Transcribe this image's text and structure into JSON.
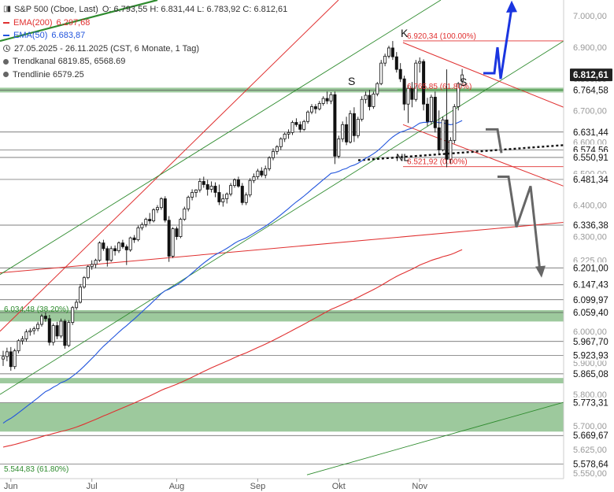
{
  "legend": {
    "symbol": "S&P 500 (Cboe, Last)",
    "ohlc": "O: 6.793,55   H: 6.831,44   L: 6.783,92   C: 6.812,61",
    "ema200_label": "EMA(200)",
    "ema200_value": "6.297,68",
    "ema50_label": "EMA(50)",
    "ema50_value": "6.683,87",
    "date_range": "27.05.2025 - 26.11.2025   (CST, 6 Monate, 1 Tag)",
    "trendkanal": "Trendkanal  6819.85, 6568.69",
    "trendlinie": "Trendlinie  6579.25",
    "colors": {
      "ema200": "#e03030",
      "ema50": "#2255dd"
    }
  },
  "annotations": {
    "fib_100": "6.920,34 (100.00%)",
    "fib_618_top": "6.765,85 (61.80%)",
    "fib_0": "6.521,92 (0.00%)",
    "fib_382_left": "6.034,48 (38.20%)",
    "fib_618_bottom": "5.544,83 (61.80%)",
    "hs_left_shoulder": "S",
    "hs_head": "K",
    "hs_right_shoulder": "S",
    "hs_neckline": "NL"
  },
  "chart_data": {
    "type": "candlestick",
    "y_axis": {
      "min": 5533,
      "max": 7050,
      "ticks": [
        "7.000,00",
        "6.900,00",
        "6.800,00",
        "6.700,00",
        "6.600,00",
        "6.500,00",
        "6.400,00",
        "6.300,00",
        "6.225,00",
        "6.100,00",
        "6.000,00",
        "5.900,00",
        "5.800,00",
        "5.700,00",
        "5.625,00",
        "5.550,00"
      ],
      "tick_values": [
        7000,
        6900,
        6800,
        6700,
        6600,
        6500,
        6400,
        6300,
        6225,
        6100,
        6000,
        5900,
        5800,
        5700,
        5625,
        5550
      ]
    },
    "x_axis": {
      "labels": [
        "Jun",
        "Jul",
        "Aug",
        "Sep",
        "Okt",
        "Nov"
      ],
      "label_index": [
        2,
        23,
        45,
        66,
        87,
        108
      ]
    },
    "last_price": {
      "label": "6.812,61",
      "value": 6812.61,
      "color": "#222222"
    },
    "levels": [
      {
        "label": "6.764,58",
        "value": 6764.58,
        "zone": true
      },
      {
        "label": "6.631,44",
        "value": 6631.44
      },
      {
        "label": "6.574,56",
        "value": 6574.56
      },
      {
        "label": "6.550,91",
        "value": 6550.91
      },
      {
        "label": "6.481,34",
        "value": 6481.34
      },
      {
        "label": "6.336,38",
        "value": 6336.38
      },
      {
        "label": "6.201,00",
        "value": 6201.0
      },
      {
        "label": "6.147,43",
        "value": 6147.43
      },
      {
        "label": "6.099,97",
        "value": 6099.97
      },
      {
        "label": "6.059,40",
        "value": 6059.4,
        "zone": true
      },
      {
        "label": "5.967,70",
        "value": 5967.7
      },
      {
        "label": "5.923,93",
        "value": 5923.93
      },
      {
        "label": "5.865,08",
        "value": 5865.08,
        "zone": true
      },
      {
        "label": "5.773,31",
        "value": 5773.31,
        "zone": true
      },
      {
        "label": "5.669,67",
        "value": 5669.67
      },
      {
        "label": "5.578,64",
        "value": 5578.64
      }
    ],
    "zones": [
      {
        "from": 6757,
        "to": 6772,
        "color": "#8cc08c"
      },
      {
        "from": 6031,
        "to": 6067,
        "color": "#8cc08c"
      },
      {
        "from": 5835,
        "to": 5852,
        "color": "#8cc08c"
      },
      {
        "from": 5682,
        "to": 5773,
        "color": "#8cc08c"
      }
    ],
    "fib_lines": [
      {
        "value": 6920.34,
        "color": "#e03030"
      },
      {
        "value": 6521.92,
        "color": "#e03030"
      }
    ],
    "candles": [
      {
        "o": 5912,
        "h": 5938,
        "l": 5890,
        "c": 5920
      },
      {
        "o": 5920,
        "h": 5948,
        "l": 5905,
        "c": 5935
      },
      {
        "o": 5935,
        "h": 5950,
        "l": 5875,
        "c": 5888
      },
      {
        "o": 5888,
        "h": 5945,
        "l": 5880,
        "c": 5938
      },
      {
        "o": 5938,
        "h": 5975,
        "l": 5930,
        "c": 5970
      },
      {
        "o": 5970,
        "h": 5985,
        "l": 5958,
        "c": 5976
      },
      {
        "o": 5976,
        "h": 6006,
        "l": 5968,
        "c": 5998
      },
      {
        "o": 5998,
        "h": 6010,
        "l": 5986,
        "c": 6002
      },
      {
        "o": 6002,
        "h": 6015,
        "l": 5990,
        "c": 6008
      },
      {
        "o": 6008,
        "h": 6030,
        "l": 6000,
        "c": 6022
      },
      {
        "o": 6022,
        "h": 6055,
        "l": 6015,
        "c": 6048
      },
      {
        "o": 6048,
        "h": 6060,
        "l": 6030,
        "c": 6040
      },
      {
        "o": 6040,
        "h": 6052,
        "l": 5955,
        "c": 5965
      },
      {
        "o": 5965,
        "h": 6025,
        "l": 5955,
        "c": 6018
      },
      {
        "o": 6018,
        "h": 6030,
        "l": 5975,
        "c": 5985
      },
      {
        "o": 5985,
        "h": 6040,
        "l": 5978,
        "c": 6032
      },
      {
        "o": 6032,
        "h": 6038,
        "l": 5945,
        "c": 5955
      },
      {
        "o": 5955,
        "h": 6035,
        "l": 5950,
        "c": 6028
      },
      {
        "o": 6028,
        "h": 6080,
        "l": 6020,
        "c": 6075
      },
      {
        "o": 6075,
        "h": 6100,
        "l": 6068,
        "c": 6092
      },
      {
        "o": 6092,
        "h": 6150,
        "l": 6088,
        "c": 6140
      },
      {
        "o": 6140,
        "h": 6175,
        "l": 6135,
        "c": 6170
      },
      {
        "o": 6170,
        "h": 6210,
        "l": 6165,
        "c": 6205
      },
      {
        "o": 6205,
        "h": 6225,
        "l": 6195,
        "c": 6212
      },
      {
        "o": 6212,
        "h": 6230,
        "l": 6200,
        "c": 6225
      },
      {
        "o": 6225,
        "h": 6285,
        "l": 6220,
        "c": 6280
      },
      {
        "o": 6280,
        "h": 6290,
        "l": 6255,
        "c": 6262
      },
      {
        "o": 6262,
        "h": 6270,
        "l": 6205,
        "c": 6225
      },
      {
        "o": 6225,
        "h": 6270,
        "l": 6220,
        "c": 6262
      },
      {
        "o": 6262,
        "h": 6272,
        "l": 6240,
        "c": 6255
      },
      {
        "o": 6255,
        "h": 6285,
        "l": 6248,
        "c": 6280
      },
      {
        "o": 6280,
        "h": 6290,
        "l": 6262,
        "c": 6268
      },
      {
        "o": 6268,
        "h": 6275,
        "l": 6210,
        "c": 6258
      },
      {
        "o": 6258,
        "h": 6300,
        "l": 6252,
        "c": 6296
      },
      {
        "o": 6296,
        "h": 6305,
        "l": 6280,
        "c": 6290
      },
      {
        "o": 6290,
        "h": 6335,
        "l": 6285,
        "c": 6328
      },
      {
        "o": 6328,
        "h": 6345,
        "l": 6320,
        "c": 6338
      },
      {
        "o": 6338,
        "h": 6360,
        "l": 6330,
        "c": 6355
      },
      {
        "o": 6355,
        "h": 6375,
        "l": 6340,
        "c": 6350
      },
      {
        "o": 6350,
        "h": 6390,
        "l": 6345,
        "c": 6385
      },
      {
        "o": 6385,
        "h": 6400,
        "l": 6375,
        "c": 6392
      },
      {
        "o": 6392,
        "h": 6425,
        "l": 6385,
        "c": 6420
      },
      {
        "o": 6420,
        "h": 6428,
        "l": 6345,
        "c": 6352
      },
      {
        "o": 6352,
        "h": 6365,
        "l": 6220,
        "c": 6238
      },
      {
        "o": 6238,
        "h": 6330,
        "l": 6232,
        "c": 6325
      },
      {
        "o": 6325,
        "h": 6332,
        "l": 6290,
        "c": 6300
      },
      {
        "o": 6300,
        "h": 6360,
        "l": 6295,
        "c": 6355
      },
      {
        "o": 6355,
        "h": 6395,
        "l": 6350,
        "c": 6388
      },
      {
        "o": 6388,
        "h": 6430,
        "l": 6380,
        "c": 6425
      },
      {
        "o": 6425,
        "h": 6450,
        "l": 6415,
        "c": 6440
      },
      {
        "o": 6440,
        "h": 6450,
        "l": 6425,
        "c": 6448
      },
      {
        "o": 6448,
        "h": 6485,
        "l": 6440,
        "c": 6475
      },
      {
        "o": 6475,
        "h": 6490,
        "l": 6455,
        "c": 6465
      },
      {
        "o": 6465,
        "h": 6480,
        "l": 6430,
        "c": 6450
      },
      {
        "o": 6450,
        "h": 6475,
        "l": 6440,
        "c": 6460
      },
      {
        "o": 6460,
        "h": 6472,
        "l": 6425,
        "c": 6440
      },
      {
        "o": 6440,
        "h": 6465,
        "l": 6400,
        "c": 6410
      },
      {
        "o": 6410,
        "h": 6435,
        "l": 6395,
        "c": 6420
      },
      {
        "o": 6420,
        "h": 6440,
        "l": 6405,
        "c": 6435
      },
      {
        "o": 6435,
        "h": 6470,
        "l": 6428,
        "c": 6462
      },
      {
        "o": 6462,
        "h": 6485,
        "l": 6455,
        "c": 6480
      },
      {
        "o": 6480,
        "h": 6490,
        "l": 6455,
        "c": 6460
      },
      {
        "o": 6460,
        "h": 6470,
        "l": 6400,
        "c": 6408
      },
      {
        "o": 6408,
        "h": 6440,
        "l": 6400,
        "c": 6432
      },
      {
        "o": 6432,
        "h": 6485,
        "l": 6425,
        "c": 6478
      },
      {
        "o": 6478,
        "h": 6500,
        "l": 6470,
        "c": 6490
      },
      {
        "o": 6490,
        "h": 6515,
        "l": 6482,
        "c": 6508
      },
      {
        "o": 6508,
        "h": 6520,
        "l": 6488,
        "c": 6495
      },
      {
        "o": 6495,
        "h": 6525,
        "l": 6485,
        "c": 6515
      },
      {
        "o": 6515,
        "h": 6555,
        "l": 6508,
        "c": 6550
      },
      {
        "o": 6550,
        "h": 6580,
        "l": 6542,
        "c": 6570
      },
      {
        "o": 6570,
        "h": 6590,
        "l": 6560,
        "c": 6585
      },
      {
        "o": 6585,
        "h": 6615,
        "l": 6575,
        "c": 6610
      },
      {
        "o": 6610,
        "h": 6630,
        "l": 6600,
        "c": 6625
      },
      {
        "o": 6625,
        "h": 6640,
        "l": 6610,
        "c": 6630
      },
      {
        "o": 6630,
        "h": 6668,
        "l": 6622,
        "c": 6662
      },
      {
        "o": 6662,
        "h": 6675,
        "l": 6648,
        "c": 6655
      },
      {
        "o": 6655,
        "h": 6665,
        "l": 6630,
        "c": 6640
      },
      {
        "o": 6640,
        "h": 6670,
        "l": 6635,
        "c": 6665
      },
      {
        "o": 6665,
        "h": 6700,
        "l": 6658,
        "c": 6695
      },
      {
        "o": 6695,
        "h": 6720,
        "l": 6688,
        "c": 6712
      },
      {
        "o": 6712,
        "h": 6720,
        "l": 6690,
        "c": 6705
      },
      {
        "o": 6705,
        "h": 6730,
        "l": 6700,
        "c": 6722
      },
      {
        "o": 6722,
        "h": 6745,
        "l": 6715,
        "c": 6738
      },
      {
        "o": 6738,
        "h": 6760,
        "l": 6720,
        "c": 6730
      },
      {
        "o": 6730,
        "h": 6758,
        "l": 6720,
        "c": 6750
      },
      {
        "o": 6750,
        "h": 6760,
        "l": 6530,
        "c": 6555
      },
      {
        "o": 6555,
        "h": 6620,
        "l": 6548,
        "c": 6610
      },
      {
        "o": 6610,
        "h": 6665,
        "l": 6600,
        "c": 6655
      },
      {
        "o": 6655,
        "h": 6680,
        "l": 6590,
        "c": 6600
      },
      {
        "o": 6600,
        "h": 6700,
        "l": 6595,
        "c": 6690
      },
      {
        "o": 6690,
        "h": 6710,
        "l": 6600,
        "c": 6620
      },
      {
        "o": 6620,
        "h": 6680,
        "l": 6612,
        "c": 6672
      },
      {
        "o": 6672,
        "h": 6745,
        "l": 6665,
        "c": 6735
      },
      {
        "o": 6735,
        "h": 6760,
        "l": 6722,
        "c": 6748
      },
      {
        "o": 6748,
        "h": 6765,
        "l": 6700,
        "c": 6712
      },
      {
        "o": 6712,
        "h": 6760,
        "l": 6705,
        "c": 6752
      },
      {
        "o": 6752,
        "h": 6790,
        "l": 6745,
        "c": 6785
      },
      {
        "o": 6785,
        "h": 6860,
        "l": 6780,
        "c": 6850
      },
      {
        "o": 6850,
        "h": 6880,
        "l": 6840,
        "c": 6872
      },
      {
        "o": 6872,
        "h": 6905,
        "l": 6865,
        "c": 6898
      },
      {
        "o": 6898,
        "h": 6920,
        "l": 6860,
        "c": 6870
      },
      {
        "o": 6870,
        "h": 6885,
        "l": 6820,
        "c": 6830
      },
      {
        "o": 6830,
        "h": 6850,
        "l": 6790,
        "c": 6800
      },
      {
        "o": 6800,
        "h": 6810,
        "l": 6700,
        "c": 6720
      },
      {
        "o": 6720,
        "h": 6780,
        "l": 6660,
        "c": 6770
      },
      {
        "o": 6770,
        "h": 6790,
        "l": 6710,
        "c": 6735
      },
      {
        "o": 6735,
        "h": 6860,
        "l": 6728,
        "c": 6850
      },
      {
        "o": 6850,
        "h": 6868,
        "l": 6820,
        "c": 6855
      },
      {
        "o": 6855,
        "h": 6862,
        "l": 6700,
        "c": 6720
      },
      {
        "o": 6720,
        "h": 6740,
        "l": 6650,
        "c": 6665
      },
      {
        "o": 6665,
        "h": 6750,
        "l": 6655,
        "c": 6742
      },
      {
        "o": 6742,
        "h": 6760,
        "l": 6630,
        "c": 6645
      },
      {
        "o": 6645,
        "h": 6700,
        "l": 6560,
        "c": 6575
      },
      {
        "o": 6575,
        "h": 6680,
        "l": 6570,
        "c": 6670
      },
      {
        "o": 6670,
        "h": 6830,
        "l": 6520,
        "c": 6545
      },
      {
        "o": 6545,
        "h": 6615,
        "l": 6530,
        "c": 6605
      },
      {
        "o": 6605,
        "h": 6720,
        "l": 6595,
        "c": 6712
      },
      {
        "o": 6712,
        "h": 6790,
        "l": 6700,
        "c": 6785
      },
      {
        "o": 6793.55,
        "h": 6831.44,
        "l": 6783.92,
        "c": 6812.61
      }
    ]
  }
}
